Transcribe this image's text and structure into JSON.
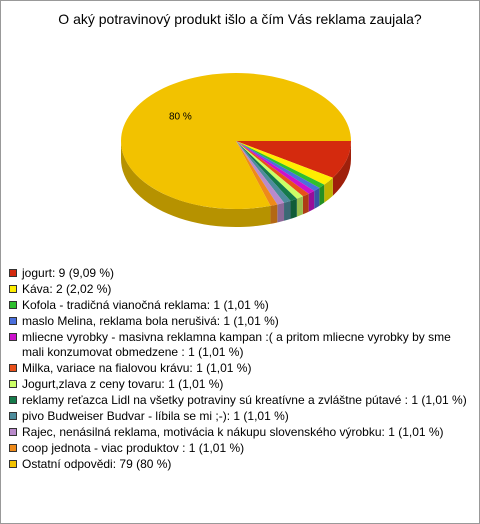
{
  "chart_data": {
    "type": "pie",
    "title": "O aký potravinový produkt išlo a čím Vás reklama zaujala?",
    "categories": [
      "jogurt: 9 (9,09 %)",
      "Káva: 2 (2,02 %)",
      "Kofola - tradičná vianočná reklama: 1 (1,01 %)",
      "maslo Melina, reklama bola nerušivá: 1 (1,01 %)",
      "mliecne vyrobky - masivna reklamna kampan :( a pritom mliecne vyrobky by sme mali konzumovat obmedzene : 1 (1,01 %)",
      "Milka, variace na fialovou krávu: 1 (1,01 %)",
      "Jogurt,zlava z ceny tovaru: 1 (1,01 %)",
      "reklamy reťazca Lidl na všetky potraviny sú kreatívne a zvláštne pútavé : 1 (1,01 %)",
      "pivo Budweiser Budvar - líbila se mi ;-): 1 (1,01 %)",
      "Rajec, nenásilná reklama, motivácia k nákupu slovenského výrobku: 1 (1,01 %)",
      "coop jednota - viac produktov : 1 (1,01 %)",
      "Ostatní odpovědi: 79 (80 %)"
    ],
    "values": [
      9.09,
      2.02,
      1.01,
      1.01,
      1.01,
      1.01,
      1.01,
      1.01,
      1.01,
      1.01,
      1.01,
      80
    ],
    "value_labels": [
      null,
      null,
      null,
      null,
      null,
      null,
      null,
      null,
      null,
      null,
      null,
      "80 %"
    ],
    "colors": [
      "#d42a0e",
      "#ffee00",
      "#2fbf2f",
      "#4a6fdc",
      "#cc11cc",
      "#e8501a",
      "#ccff66",
      "#157a4a",
      "#4d8c9c",
      "#b98acb",
      "#ee8a1a",
      "#f2c200"
    ]
  }
}
